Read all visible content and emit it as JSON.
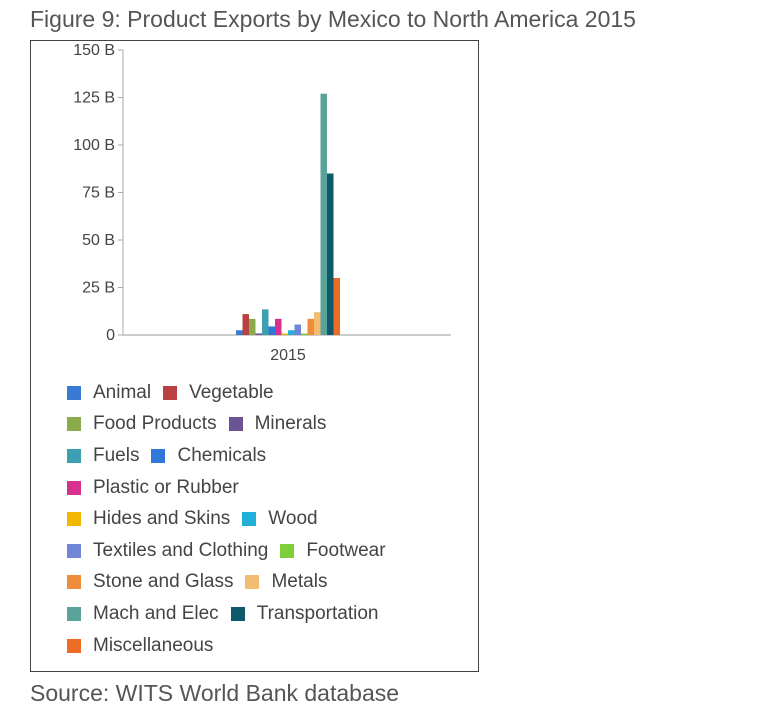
{
  "figure_title": "Figure 9: Product Exports by Mexico to North America 2015",
  "source": "Source: WITS World Bank database",
  "chart_data": {
    "type": "bar",
    "categories": [
      "2015"
    ],
    "ylim": [
      0,
      150
    ],
    "yticks": [
      0,
      25,
      50,
      75,
      100,
      125,
      150
    ],
    "ytick_labels": [
      "0",
      "25 B",
      "50 B",
      "75 B",
      "100 B",
      "125 B",
      "150 B"
    ],
    "grid": false,
    "legend_placement": "bottom",
    "series": [
      {
        "name": "Animal",
        "values": [
          2.5
        ],
        "color": "#3a79d4"
      },
      {
        "name": "Vegetable",
        "values": [
          11
        ],
        "color": "#b94141"
      },
      {
        "name": "Food Products",
        "values": [
          8.5
        ],
        "color": "#8aab4c"
      },
      {
        "name": "Minerals",
        "values": [
          0.8
        ],
        "color": "#6b5394"
      },
      {
        "name": "Fuels",
        "values": [
          13.5
        ],
        "color": "#3d9fb0"
      },
      {
        "name": "Chemicals",
        "values": [
          4.5
        ],
        "color": "#2f78d8"
      },
      {
        "name": "Plastic or Rubber",
        "values": [
          8.5
        ],
        "color": "#d6318e"
      },
      {
        "name": "Hides and Skins",
        "values": [
          0.8
        ],
        "color": "#f2b705"
      },
      {
        "name": "Wood",
        "values": [
          2.5
        ],
        "color": "#22b0d9"
      },
      {
        "name": "Textiles and Clothing",
        "values": [
          5.5
        ],
        "color": "#6f87d6"
      },
      {
        "name": "Footwear",
        "values": [
          0.8
        ],
        "color": "#7fcf3a"
      },
      {
        "name": "Stone and Glass",
        "values": [
          8.5
        ],
        "color": "#f08d3c"
      },
      {
        "name": "Metals",
        "values": [
          12
        ],
        "color": "#f2bd73"
      },
      {
        "name": "Mach and Elec",
        "values": [
          127
        ],
        "color": "#5aa39a"
      },
      {
        "name": "Transportation",
        "values": [
          85
        ],
        "color": "#0e5a6b"
      },
      {
        "name": "Miscellaneous",
        "values": [
          30
        ],
        "color": "#ec6b25"
      }
    ]
  }
}
